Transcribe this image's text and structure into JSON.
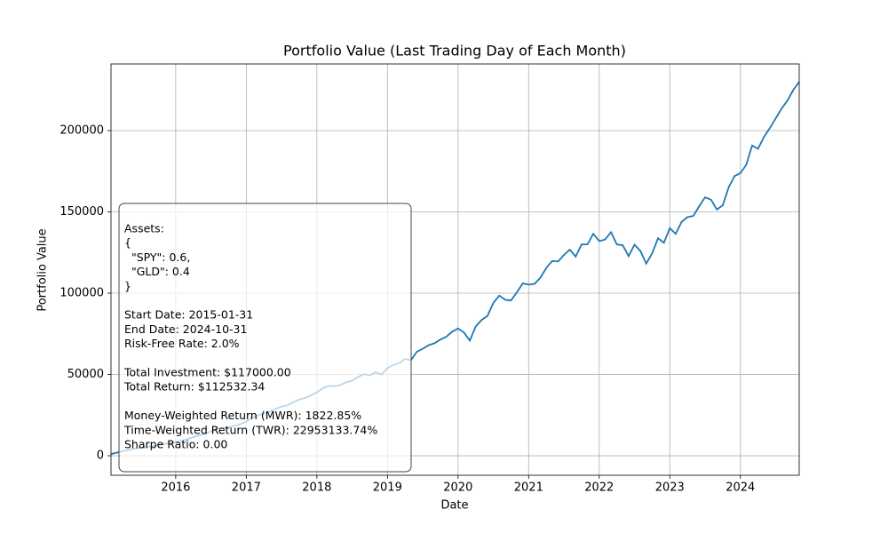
{
  "chart_data": {
    "type": "line",
    "title": "Portfolio Value (Last Trading Day of Each Month)",
    "x_label": "Date",
    "y_label": "Portfolio Value",
    "color": "#1f77b4",
    "grid": true,
    "xlim": [
      "2015-01",
      "2024-10"
    ],
    "xticks": [
      {
        "value": "2016-01-01",
        "label": "2016"
      },
      {
        "value": "2017-01-01",
        "label": "2017"
      },
      {
        "value": "2018-01-01",
        "label": "2018"
      },
      {
        "value": "2019-01-01",
        "label": "2019"
      },
      {
        "value": "2020-01-01",
        "label": "2020"
      },
      {
        "value": "2021-01-01",
        "label": "2021"
      },
      {
        "value": "2022-01-01",
        "label": "2022"
      },
      {
        "value": "2023-01-01",
        "label": "2023"
      },
      {
        "value": "2024-01-01",
        "label": "2024"
      }
    ],
    "ylim": [
      -12000,
      241000
    ],
    "yticks": [
      0,
      50000,
      100000,
      150000,
      200000
    ],
    "x": [
      "2015-01",
      "2015-02",
      "2015-03",
      "2015-04",
      "2015-05",
      "2015-06",
      "2015-07",
      "2015-08",
      "2015-09",
      "2015-10",
      "2015-11",
      "2015-12",
      "2016-01",
      "2016-02",
      "2016-03",
      "2016-04",
      "2016-05",
      "2016-06",
      "2016-07",
      "2016-08",
      "2016-09",
      "2016-10",
      "2016-11",
      "2016-12",
      "2017-01",
      "2017-02",
      "2017-03",
      "2017-04",
      "2017-05",
      "2017-06",
      "2017-07",
      "2017-08",
      "2017-09",
      "2017-10",
      "2017-11",
      "2017-12",
      "2018-01",
      "2018-02",
      "2018-03",
      "2018-04",
      "2018-05",
      "2018-06",
      "2018-07",
      "2018-08",
      "2018-09",
      "2018-10",
      "2018-11",
      "2018-12",
      "2019-01",
      "2019-02",
      "2019-03",
      "2019-04",
      "2019-05",
      "2019-06",
      "2019-07",
      "2019-08",
      "2019-09",
      "2019-10",
      "2019-11",
      "2019-12",
      "2020-01",
      "2020-02",
      "2020-03",
      "2020-04",
      "2020-05",
      "2020-06",
      "2020-07",
      "2020-08",
      "2020-09",
      "2020-10",
      "2020-11",
      "2020-12",
      "2021-01",
      "2021-02",
      "2021-03",
      "2021-04",
      "2021-05",
      "2021-06",
      "2021-07",
      "2021-08",
      "2021-09",
      "2021-10",
      "2021-11",
      "2021-12",
      "2022-01",
      "2022-02",
      "2022-03",
      "2022-04",
      "2022-05",
      "2022-06",
      "2022-07",
      "2022-08",
      "2022-09",
      "2022-10",
      "2022-11",
      "2022-12",
      "2023-01",
      "2023-02",
      "2023-03",
      "2023-04",
      "2023-05",
      "2023-06",
      "2023-07",
      "2023-08",
      "2023-09",
      "2023-10",
      "2023-11",
      "2023-12",
      "2024-01",
      "2024-02",
      "2024-03",
      "2024-04",
      "2024-05",
      "2024-06",
      "2024-07",
      "2024-08",
      "2024-09",
      "2024-10"
    ],
    "values": [
      1000,
      1900,
      2800,
      3600,
      4300,
      4900,
      5400,
      5800,
      6500,
      7200,
      7800,
      8400,
      9200,
      10300,
      11500,
      12600,
      13500,
      15000,
      16800,
      17200,
      17500,
      18500,
      19500,
      21000,
      23500,
      24800,
      26000,
      27300,
      28900,
      30200,
      31000,
      33000,
      34500,
      35600,
      37200,
      39000,
      41500,
      43000,
      42800,
      43500,
      45200,
      46100,
      48500,
      50200,
      49500,
      51300,
      49900,
      54000,
      55800,
      57000,
      59500,
      58800,
      64000,
      65800,
      68000,
      69200,
      71500,
      73200,
      76300,
      78300,
      75800,
      70800,
      79500,
      83500,
      86000,
      94000,
      98500,
      96000,
      95500,
      100500,
      106000,
      105300,
      105700,
      109500,
      115500,
      119800,
      119500,
      123500,
      126800,
      122500,
      130000,
      130000,
      136500,
      132000,
      133000,
      137500,
      130000,
      129500,
      122800,
      129800,
      126000,
      118200,
      124500,
      133800,
      131000,
      140000,
      136500,
      143800,
      146800,
      147500,
      153500,
      159000,
      157500,
      151500,
      154000,
      165000,
      172000,
      173800,
      179000,
      190800,
      188800,
      196000,
      201500,
      207500,
      213500,
      218500,
      225000,
      230000
    ],
    "annotation": [
      [
        "Assets:",
        "{",
        "  \"SPY\": 0.6,",
        "  \"GLD\": 0.4",
        "}"
      ],
      [
        "Start Date: 2015-01-31",
        "End Date: 2024-10-31",
        "Risk-Free Rate: 2.0%"
      ],
      [
        "Total Investment: $117000.00",
        "Total Return: $112532.34"
      ],
      [
        "Money-Weighted Return (MWR): 1822.85%",
        "Time-Weighted Return (TWR): 22953133.74%",
        "Sharpe Ratio: 0.00"
      ]
    ]
  }
}
